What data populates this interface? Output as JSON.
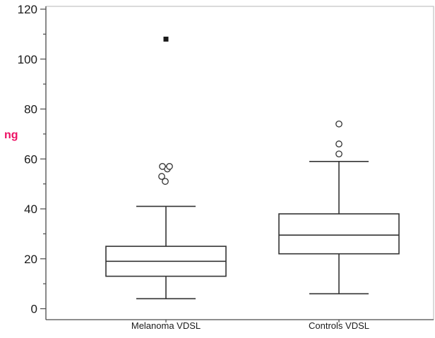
{
  "chart_data": {
    "type": "boxplot",
    "title": "",
    "ylabel": "ng",
    "ylabel_color": "#ed1164",
    "axis_color": "#4a4a4a",
    "frame_color": "#b4b4b4",
    "box_color": "#333333",
    "text_color": "#1a1a1a",
    "background": "#ffffff",
    "ylim": [
      -5,
      121
    ],
    "yticks": [
      0,
      20,
      40,
      60,
      80,
      100,
      120
    ],
    "minor_ytick_step": 10,
    "grid": "off",
    "legend": "none",
    "categories": [
      "Melanoma VDSL",
      "Controls VDSL"
    ],
    "series": [
      {
        "name": "Melanoma VDSL",
        "min": 4,
        "q1": 13,
        "median": 19,
        "q3": 25,
        "max": 41,
        "outliers": [
          51,
          53,
          56,
          57,
          57
        ],
        "extreme_outliers": [
          108
        ]
      },
      {
        "name": "Controls VDSL",
        "min": 6,
        "q1": 22,
        "median": 29.5,
        "q3": 38,
        "max": 59,
        "outliers": [
          62,
          66,
          74
        ],
        "extreme_outliers": []
      }
    ]
  }
}
